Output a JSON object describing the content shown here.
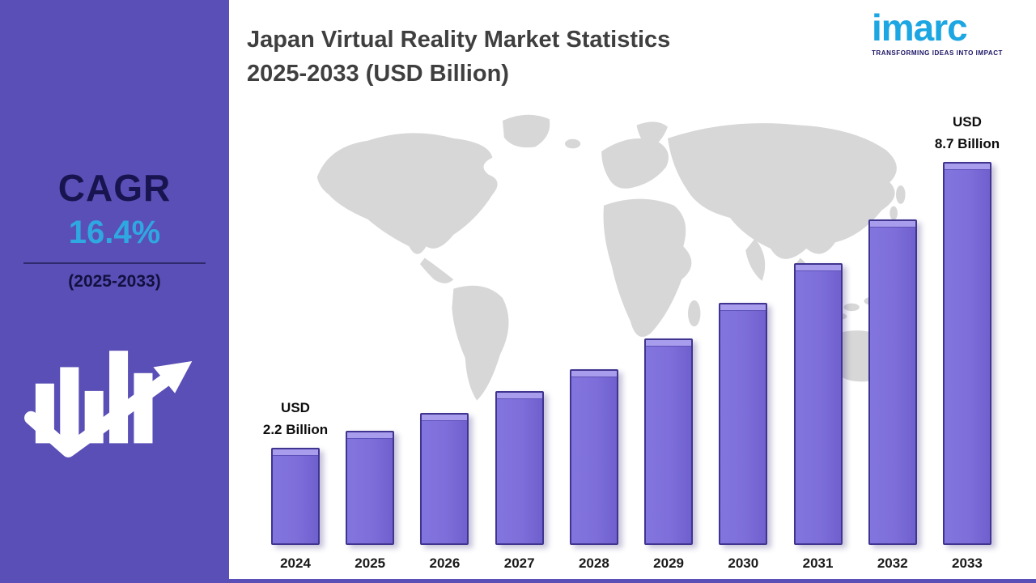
{
  "sidebar": {
    "cagr_label": "CAGR",
    "cagr_value": "16.4%",
    "cagr_period": "(2025-2033)"
  },
  "header": {
    "title_line1": "Japan Virtual Reality Market Statistics",
    "title_line2": "2025-2033 (USD Billion)"
  },
  "logo": {
    "wordmark": "imarc",
    "tagline": "TRANSFORMING IDEAS INTO IMPACT"
  },
  "chart_data": {
    "type": "bar",
    "title": "Japan Virtual Reality Market Statistics 2025-2033 (USD Billion)",
    "unit": "USD Billion",
    "cagr": "16.4% (2025-2033)",
    "categories": [
      "2024",
      "2025",
      "2026",
      "2027",
      "2028",
      "2029",
      "2030",
      "2031",
      "2032",
      "2033"
    ],
    "values": [
      2.2,
      2.6,
      3.0,
      3.5,
      4.0,
      4.7,
      5.5,
      6.4,
      7.4,
      8.7
    ],
    "ylim": [
      0,
      9.2
    ],
    "xlabel": "",
    "ylabel": "",
    "grid": false,
    "legend": false,
    "annotations": [
      {
        "index": 0,
        "lines": [
          "USD",
          "2.2 Billion"
        ]
      },
      {
        "index": 9,
        "lines": [
          "USD",
          "8.7 Billion"
        ]
      }
    ]
  },
  "colors": {
    "sidebar_bg": "#5A4FB6",
    "accent_blue": "#2FA8E1",
    "navy": "#1B1464",
    "bar_fill": "#7D6EDA",
    "bar_border": "#3F3590",
    "map_gray": "#D7D7D7"
  }
}
